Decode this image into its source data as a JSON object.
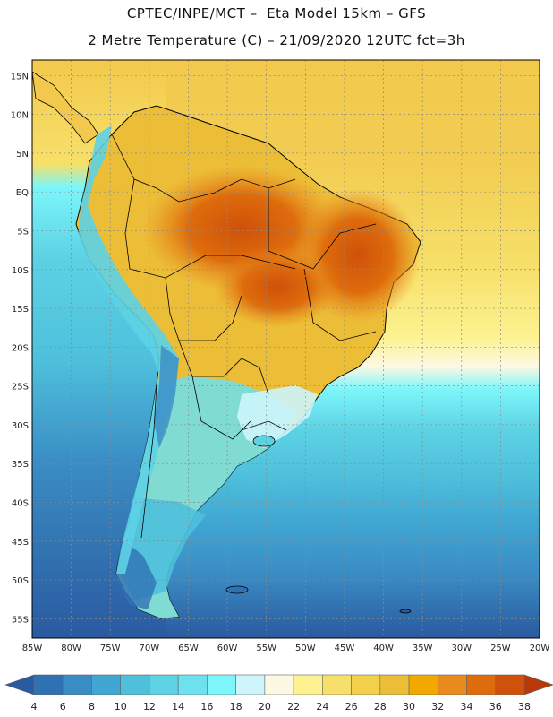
{
  "title": {
    "line1": "CPTEC/INPE/MCT –  Eta Model 15km – GFS",
    "line2": "2 Metre Temperature (C) – 21/09/2020 12UTC fct=3h"
  },
  "map": {
    "lat_labels": [
      "15N",
      "10N",
      "5N",
      "EQ",
      "5S",
      "10S",
      "15S",
      "20S",
      "25S",
      "30S",
      "35S",
      "40S",
      "45S",
      "50S",
      "55S"
    ],
    "lat_values": [
      15,
      10,
      5,
      0,
      -5,
      -10,
      -15,
      -20,
      -25,
      -30,
      -35,
      -40,
      -45,
      -50,
      -55
    ],
    "lon_labels": [
      "85W",
      "80W",
      "75W",
      "70W",
      "65W",
      "60W",
      "55W",
      "50W",
      "45W",
      "40W",
      "35W",
      "30W",
      "25W",
      "20W"
    ],
    "lon_values": [
      -85,
      -80,
      -75,
      -70,
      -65,
      -60,
      -55,
      -50,
      -45,
      -40,
      -35,
      -30,
      -25,
      -20
    ],
    "extent": {
      "lon_min": -85,
      "lon_max": -20,
      "lat_min": -57.5,
      "lat_max": 17
    }
  },
  "legend": {
    "ticks": [
      "4",
      "6",
      "8",
      "10",
      "12",
      "14",
      "16",
      "18",
      "20",
      "22",
      "24",
      "26",
      "28",
      "30",
      "32",
      "34",
      "36",
      "38"
    ],
    "colors": [
      "#2a5aa0",
      "#2f72b4",
      "#3a8cc4",
      "#40a6d2",
      "#4ec0dc",
      "#5dd2e4",
      "#6de2ee",
      "#7cf6fa",
      "#cdf5fb",
      "#fdf8e4",
      "#fcf291",
      "#f7e06a",
      "#f2d04a",
      "#ecbd37",
      "#f1a800",
      "#e88a1e",
      "#de6c0c",
      "#cf510a",
      "#b8380a"
    ]
  },
  "colors": {
    "ocean_warm": "#f2c94c",
    "ocean_mid": "#fcf291",
    "ocean_cool": "#40a6d2",
    "ocean_cold": "#2f72b4",
    "land_hot": "#de6c0c",
    "land_warm": "#ecbd37",
    "andes": "#6de2ee"
  }
}
